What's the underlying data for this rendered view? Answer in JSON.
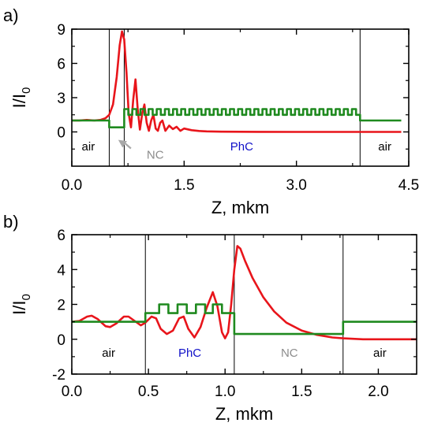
{
  "colors": {
    "intensity": "#e8151b",
    "refractive_index": "#1f8a1f",
    "air": "#000000",
    "nc": "#8c8c8c",
    "phc": "#1010c8",
    "arrow": "#a8a8a8"
  },
  "chart_data": [
    {
      "type": "line",
      "panel_label": "a)",
      "xlabel": "Z, mkm",
      "ylabel_main": "I/I",
      "ylabel_sub": "0",
      "xlim": [
        0,
        4.5
      ],
      "ylim": [
        -3,
        9
      ],
      "xticks": [
        "0.0",
        "1.5",
        "3.0",
        "4.5"
      ],
      "yticks": [
        "0",
        "3",
        "6",
        "9"
      ],
      "xtick_values": [
        0,
        1.5,
        3.0,
        4.5
      ],
      "ytick_values": [
        0,
        3,
        6,
        9
      ],
      "boundaries": [
        0.5,
        0.7,
        3.85
      ],
      "regions": [
        {
          "label": "air",
          "x": 0.22,
          "color_key": "air"
        },
        {
          "label": "PhC",
          "x": 2.27,
          "color_key": "phc"
        },
        {
          "label": "air",
          "x": 4.18,
          "color_key": "air"
        }
      ],
      "annotation": {
        "label": "NC",
        "target_x": 0.62,
        "target_y": -0.7,
        "text_x": 1.0,
        "text_y": -2.0,
        "color_key": "nc"
      },
      "series": [
        {
          "color_key": "intensity",
          "points": [
            [
              0.0,
              1.0
            ],
            [
              0.1,
              1.0
            ],
            [
              0.2,
              1.05
            ],
            [
              0.3,
              1.0
            ],
            [
              0.38,
              1.05
            ],
            [
              0.45,
              1.2
            ],
            [
              0.5,
              1.5
            ],
            [
              0.55,
              2.4
            ],
            [
              0.6,
              4.8
            ],
            [
              0.64,
              7.6
            ],
            [
              0.67,
              8.8
            ],
            [
              0.7,
              8.1
            ],
            [
              0.73,
              5.2
            ],
            [
              0.76,
              1.6
            ],
            [
              0.79,
              0.4
            ],
            [
              0.82,
              2.8
            ],
            [
              0.85,
              4.6
            ],
            [
              0.88,
              2.0
            ],
            [
              0.91,
              0.2
            ],
            [
              0.94,
              1.6
            ],
            [
              0.97,
              2.4
            ],
            [
              1.0,
              0.8
            ],
            [
              1.03,
              0.1
            ],
            [
              1.06,
              1.0
            ],
            [
              1.09,
              1.5
            ],
            [
              1.12,
              0.3
            ],
            [
              1.15,
              0.1
            ],
            [
              1.18,
              0.8
            ],
            [
              1.21,
              1.0
            ],
            [
              1.25,
              0.1
            ],
            [
              1.3,
              0.55
            ],
            [
              1.35,
              0.25
            ],
            [
              1.4,
              0.45
            ],
            [
              1.45,
              0.1
            ],
            [
              1.5,
              0.3
            ],
            [
              1.6,
              0.15
            ],
            [
              1.7,
              0.08
            ],
            [
              1.8,
              0.05
            ],
            [
              2.0,
              0.02
            ],
            [
              2.5,
              0.01
            ],
            [
              3.0,
              0.0
            ],
            [
              3.85,
              0.0
            ],
            [
              4.4,
              0.0
            ]
          ]
        },
        {
          "color_key": "refractive_index",
          "step": true,
          "period": 0.11,
          "start": 0.7,
          "end": 3.85,
          "low": 1.5,
          "high": 2.0,
          "before": [
            [
              0.0,
              1.0
            ],
            [
              0.5,
              1.0
            ],
            [
              0.5,
              0.4
            ],
            [
              0.7,
              0.4
            ]
          ],
          "after": [
            [
              3.85,
              1.0
            ],
            [
              4.4,
              1.0
            ]
          ]
        }
      ]
    },
    {
      "type": "line",
      "panel_label": "b)",
      "xlabel": "Z, mkm",
      "ylabel_main": "I/I",
      "ylabel_sub": "0",
      "xlim": [
        0,
        2.25
      ],
      "ylim": [
        -2,
        6
      ],
      "xticks": [
        "0.0",
        "0.5",
        "1.0",
        "1.5",
        "2.0"
      ],
      "yticks": [
        "-2",
        "0",
        "2",
        "4",
        "6"
      ],
      "xtick_values": [
        0,
        0.5,
        1.0,
        1.5,
        2.0
      ],
      "ytick_values": [
        -2,
        0,
        2,
        4,
        6
      ],
      "boundaries": [
        0.48,
        1.06,
        1.77
      ],
      "regions": [
        {
          "label": "air",
          "x": 0.24,
          "color_key": "air"
        },
        {
          "label": "PhC",
          "x": 0.77,
          "color_key": "phc"
        },
        {
          "label": "NC",
          "x": 1.42,
          "color_key": "nc"
        },
        {
          "label": "air",
          "x": 2.01,
          "color_key": "air"
        }
      ],
      "series": [
        {
          "color_key": "intensity",
          "points": [
            [
              0.0,
              1.0
            ],
            [
              0.05,
              1.05
            ],
            [
              0.1,
              1.3
            ],
            [
              0.13,
              1.35
            ],
            [
              0.17,
              1.15
            ],
            [
              0.22,
              0.75
            ],
            [
              0.25,
              0.7
            ],
            [
              0.29,
              0.9
            ],
            [
              0.34,
              1.3
            ],
            [
              0.37,
              1.3
            ],
            [
              0.41,
              1.05
            ],
            [
              0.45,
              0.8
            ],
            [
              0.48,
              0.95
            ],
            [
              0.52,
              1.3
            ],
            [
              0.55,
              1.2
            ],
            [
              0.58,
              0.6
            ],
            [
              0.62,
              0.3
            ],
            [
              0.66,
              0.5
            ],
            [
              0.7,
              1.2
            ],
            [
              0.73,
              1.3
            ],
            [
              0.76,
              0.6
            ],
            [
              0.8,
              0.1
            ],
            [
              0.84,
              0.7
            ],
            [
              0.88,
              1.8
            ],
            [
              0.92,
              2.7
            ],
            [
              0.95,
              1.9
            ],
            [
              0.98,
              0.4
            ],
            [
              1.0,
              0.05
            ],
            [
              1.02,
              0.4
            ],
            [
              1.04,
              2.0
            ],
            [
              1.06,
              4.0
            ],
            [
              1.08,
              5.35
            ],
            [
              1.1,
              5.2
            ],
            [
              1.13,
              4.5
            ],
            [
              1.18,
              3.5
            ],
            [
              1.25,
              2.4
            ],
            [
              1.32,
              1.6
            ],
            [
              1.4,
              0.95
            ],
            [
              1.5,
              0.5
            ],
            [
              1.6,
              0.25
            ],
            [
              1.7,
              0.1
            ],
            [
              1.77,
              0.05
            ],
            [
              1.9,
              0.0
            ],
            [
              2.25,
              0.0
            ]
          ]
        },
        {
          "color_key": "refractive_index",
          "points": [
            [
              0.0,
              1.0
            ],
            [
              0.48,
              1.0
            ],
            [
              0.48,
              1.5
            ],
            [
              0.57,
              1.5
            ],
            [
              0.57,
              2.0
            ],
            [
              0.63,
              2.0
            ],
            [
              0.63,
              1.5
            ],
            [
              0.69,
              1.5
            ],
            [
              0.69,
              2.0
            ],
            [
              0.75,
              2.0
            ],
            [
              0.75,
              1.5
            ],
            [
              0.81,
              1.5
            ],
            [
              0.81,
              2.0
            ],
            [
              0.87,
              2.0
            ],
            [
              0.87,
              1.5
            ],
            [
              0.92,
              1.5
            ],
            [
              0.92,
              2.0
            ],
            [
              0.98,
              2.0
            ],
            [
              0.98,
              1.5
            ],
            [
              1.06,
              1.5
            ],
            [
              1.06,
              0.3
            ],
            [
              1.77,
              0.3
            ],
            [
              1.77,
              1.0
            ],
            [
              2.25,
              1.0
            ]
          ]
        }
      ]
    }
  ]
}
